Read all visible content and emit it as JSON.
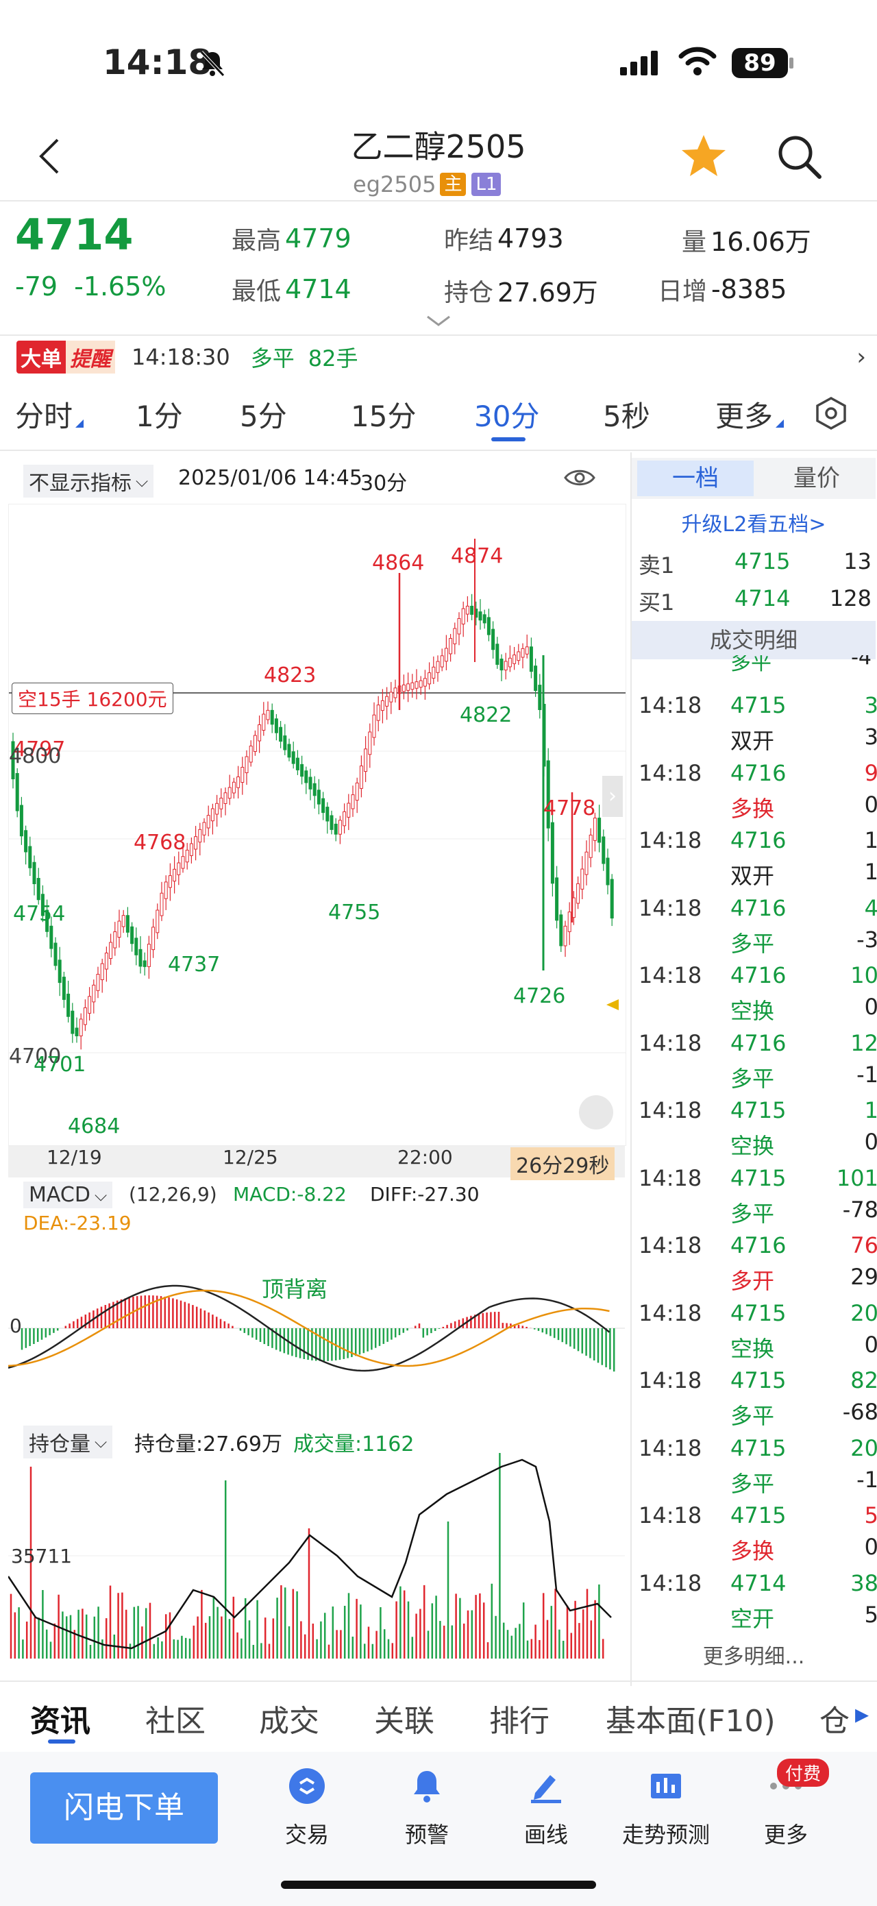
{
  "status": {
    "time": "14:18",
    "battery": "89"
  },
  "header": {
    "title": "乙二醇2505",
    "code": "eg2505",
    "tag_main": "主",
    "tag_level": "L1"
  },
  "quote": {
    "price": "4714",
    "change": "-79",
    "change_pct": "-1.65%",
    "high_label": "最高",
    "high": "4779",
    "low_label": "最低",
    "low": "4714",
    "prev_settle_label": "昨结",
    "prev_settle": "4793",
    "open_interest_label": "持仓",
    "open_interest": "27.69万",
    "volume_label": "量",
    "volume": "16.06万",
    "daily_inc_label": "日增",
    "daily_inc": "-8385"
  },
  "alert": {
    "badge1": "大单",
    "badge2": "提醒",
    "time": "14:18:30",
    "type": "多平",
    "qty": "82手"
  },
  "tabs": [
    "分时",
    "1分",
    "5分",
    "15分",
    "30分",
    "5秒",
    "更多"
  ],
  "active_tab": "30分",
  "chart_header": {
    "indicator": "不显示指标",
    "datetime": "2025/01/06 14:45",
    "period": "30分"
  },
  "chart": {
    "order_label": "空15手 16200元",
    "price_labels": [
      {
        "text": "4874",
        "color": "#e0262e"
      },
      {
        "text": "4864",
        "color": "#e0262e"
      },
      {
        "text": "4823",
        "color": "#e0262e"
      },
      {
        "text": "4822",
        "color": "#139a3f"
      },
      {
        "text": "4797",
        "color": "#e0262e"
      },
      {
        "text": "4800",
        "color": "#444"
      },
      {
        "text": "4778",
        "color": "#e0262e"
      },
      {
        "text": "4768",
        "color": "#e0262e"
      },
      {
        "text": "4754",
        "color": "#139a3f"
      },
      {
        "text": "4755",
        "color": "#139a3f"
      },
      {
        "text": "4737",
        "color": "#139a3f"
      },
      {
        "text": "4726",
        "color": "#139a3f"
      },
      {
        "text": "4700",
        "color": "#444"
      },
      {
        "text": "4701",
        "color": "#139a3f"
      },
      {
        "text": "4684",
        "color": "#139a3f"
      }
    ],
    "x_ticks": [
      "12/19",
      "12/25",
      "22:00"
    ],
    "countdown": "26分29秒"
  },
  "macd": {
    "name": "MACD",
    "params": "(12,26,9)",
    "macd": "MACD:-8.22",
    "diff": "DIFF:-27.30",
    "dea": "DEA:-23.19",
    "note": "顶背离",
    "zero": "0"
  },
  "oi_panel": {
    "name": "持仓量",
    "oi": "持仓量:27.69万",
    "vol": "成交量:1162",
    "level": "35711"
  },
  "side": {
    "tab1": "一档",
    "tab2": "量价",
    "upgrade": "升级L2看五档>",
    "sell_label": "卖1",
    "sell_price": "4715",
    "sell_qty": "13",
    "buy_label": "买1",
    "buy_price": "4714",
    "buy_qty": "128",
    "deals_title": "成交明细",
    "more": "更多明细...",
    "partial_type": "多平",
    "partial_val": "-4",
    "trades": [
      {
        "time": "14:18",
        "price": "4715",
        "vol": "3",
        "type": "双开",
        "oi": "3",
        "vc": "#139a3f",
        "tc": "#222"
      },
      {
        "time": "14:18",
        "price": "4716",
        "vol": "9",
        "type": "多换",
        "oi": "0",
        "vc": "#e0262e",
        "tc": "#e0262e"
      },
      {
        "time": "14:18",
        "price": "4716",
        "vol": "1",
        "type": "双开",
        "oi": "1",
        "vc": "#222",
        "tc": "#222"
      },
      {
        "time": "14:18",
        "price": "4716",
        "vol": "4",
        "type": "多平",
        "oi": "-3",
        "vc": "#139a3f",
        "tc": "#139a3f"
      },
      {
        "time": "14:18",
        "price": "4716",
        "vol": "10",
        "type": "空换",
        "oi": "0",
        "vc": "#139a3f",
        "tc": "#139a3f"
      },
      {
        "time": "14:18",
        "price": "4716",
        "vol": "12",
        "type": "多平",
        "oi": "-1",
        "vc": "#139a3f",
        "tc": "#139a3f"
      },
      {
        "time": "14:18",
        "price": "4715",
        "vol": "1",
        "type": "空换",
        "oi": "0",
        "vc": "#139a3f",
        "tc": "#139a3f"
      },
      {
        "time": "14:18",
        "price": "4715",
        "vol": "101",
        "type": "多平",
        "oi": "-78",
        "vc": "#139a3f",
        "tc": "#139a3f"
      },
      {
        "time": "14:18",
        "price": "4716",
        "vol": "76",
        "type": "多开",
        "oi": "29",
        "vc": "#e0262e",
        "tc": "#e0262e"
      },
      {
        "time": "14:18",
        "price": "4715",
        "vol": "20",
        "type": "空换",
        "oi": "0",
        "vc": "#139a3f",
        "tc": "#139a3f"
      },
      {
        "time": "14:18",
        "price": "4715",
        "vol": "82",
        "type": "多平",
        "oi": "-68",
        "vc": "#139a3f",
        "tc": "#139a3f"
      },
      {
        "time": "14:18",
        "price": "4715",
        "vol": "20",
        "type": "多平",
        "oi": "-1",
        "vc": "#139a3f",
        "tc": "#139a3f"
      },
      {
        "time": "14:18",
        "price": "4715",
        "vol": "5",
        "type": "多换",
        "oi": "0",
        "vc": "#e0262e",
        "tc": "#e0262e"
      },
      {
        "time": "14:18",
        "price": "4714",
        "vol": "38",
        "type": "空开",
        "oi": "5",
        "vc": "#139a3f",
        "tc": "#139a3f"
      }
    ]
  },
  "bottom_tabs": [
    "资讯",
    "社区",
    "成交",
    "关联",
    "排行",
    "基本面(F10)",
    "仓"
  ],
  "nav": {
    "flash_order": "闪电下单",
    "items": [
      "交易",
      "预警",
      "画线",
      "走势预测",
      "更多"
    ],
    "badge": "付费"
  }
}
